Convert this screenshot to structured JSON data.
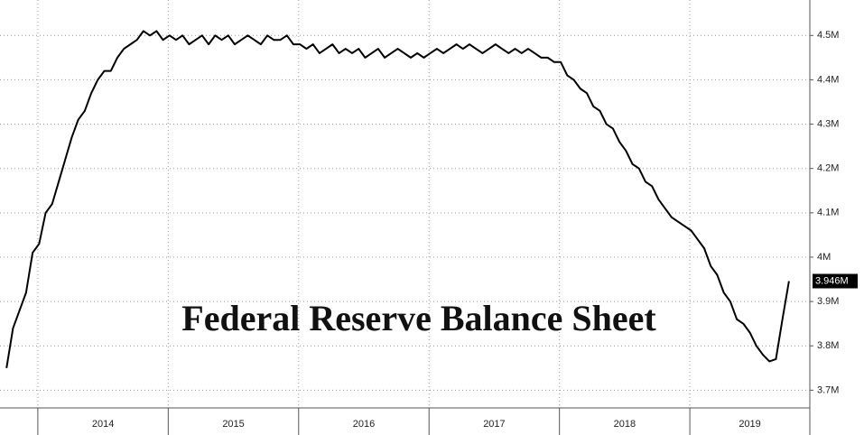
{
  "chart_data": {
    "type": "line",
    "title": "Federal Reserve Balance Sheet",
    "x": [
      2013.76,
      2013.81,
      2013.86,
      2013.91,
      2013.96,
      2014.01,
      2014.06,
      2014.11,
      2014.16,
      2014.21,
      2014.26,
      2014.31,
      2014.36,
      2014.41,
      2014.46,
      2014.51,
      2014.56,
      2014.61,
      2014.66,
      2014.71,
      2014.76,
      2014.81,
      2014.86,
      2014.91,
      2014.96,
      2015.01,
      2015.06,
      2015.11,
      2015.16,
      2015.21,
      2015.26,
      2015.31,
      2015.36,
      2015.41,
      2015.46,
      2015.51,
      2015.56,
      2015.61,
      2015.66,
      2015.71,
      2015.76,
      2015.81,
      2015.86,
      2015.91,
      2015.96,
      2016.01,
      2016.06,
      2016.11,
      2016.16,
      2016.21,
      2016.26,
      2016.31,
      2016.36,
      2016.41,
      2016.46,
      2016.51,
      2016.56,
      2016.61,
      2016.66,
      2016.71,
      2016.76,
      2016.81,
      2016.86,
      2016.91,
      2016.96,
      2017.01,
      2017.06,
      2017.11,
      2017.16,
      2017.21,
      2017.26,
      2017.31,
      2017.36,
      2017.41,
      2017.46,
      2017.51,
      2017.56,
      2017.61,
      2017.66,
      2017.71,
      2017.76,
      2017.81,
      2017.86,
      2017.91,
      2017.96,
      2018.01,
      2018.06,
      2018.11,
      2018.16,
      2018.21,
      2018.26,
      2018.31,
      2018.36,
      2018.41,
      2018.46,
      2018.51,
      2018.56,
      2018.61,
      2018.66,
      2018.71,
      2018.76,
      2018.81,
      2018.86,
      2018.91,
      2018.96,
      2019.01,
      2019.06,
      2019.11,
      2019.16,
      2019.21,
      2019.26,
      2019.31,
      2019.36,
      2019.41,
      2019.46,
      2019.51,
      2019.56,
      2019.61,
      2019.66,
      2019.71,
      2019.76
    ],
    "series": [
      {
        "color": "#000000",
        "values": [
          3.75,
          3.84,
          3.88,
          3.92,
          4.01,
          4.03,
          4.1,
          4.12,
          4.17,
          4.22,
          4.27,
          4.31,
          4.33,
          4.37,
          4.4,
          4.42,
          4.42,
          4.45,
          4.47,
          4.48,
          4.49,
          4.51,
          4.5,
          4.51,
          4.49,
          4.5,
          4.49,
          4.5,
          4.48,
          4.49,
          4.5,
          4.48,
          4.5,
          4.49,
          4.5,
          4.48,
          4.49,
          4.5,
          4.49,
          4.48,
          4.5,
          4.49,
          4.49,
          4.5,
          4.48,
          4.48,
          4.47,
          4.48,
          4.46,
          4.47,
          4.48,
          4.46,
          4.47,
          4.46,
          4.47,
          4.45,
          4.46,
          4.47,
          4.45,
          4.46,
          4.47,
          4.46,
          4.45,
          4.46,
          4.45,
          4.46,
          4.47,
          4.46,
          4.47,
          4.48,
          4.47,
          4.48,
          4.47,
          4.46,
          4.47,
          4.48,
          4.47,
          4.46,
          4.47,
          4.46,
          4.47,
          4.46,
          4.45,
          4.45,
          4.44,
          4.44,
          4.41,
          4.4,
          4.38,
          4.37,
          4.34,
          4.33,
          4.3,
          4.29,
          4.26,
          4.24,
          4.21,
          4.2,
          4.17,
          4.16,
          4.13,
          4.11,
          4.09,
          4.08,
          4.07,
          4.06,
          4.04,
          4.02,
          3.98,
          3.96,
          3.92,
          3.9,
          3.86,
          3.85,
          3.83,
          3.8,
          3.78,
          3.765,
          3.77,
          3.86,
          3.946
        ]
      }
    ],
    "last_value": {
      "value": 3.946,
      "label": "3.946M"
    },
    "xlim": [
      2013.71,
      2019.92
    ],
    "xticks": [
      2014,
      2015,
      2016,
      2017,
      2018,
      2019
    ],
    "ylim": [
      3.66,
      4.58
    ],
    "yticks": [
      {
        "value": 3.7,
        "label": "3.7M"
      },
      {
        "value": 3.8,
        "label": "3.8M"
      },
      {
        "value": 3.9,
        "label": "3.9M"
      },
      {
        "value": 4,
        "label": "4M"
      },
      {
        "value": 4.1,
        "label": "4.1M"
      },
      {
        "value": 4.2,
        "label": "4.2M"
      },
      {
        "value": 4.3,
        "label": "4.3M"
      },
      {
        "value": 4.4,
        "label": "4.4M"
      },
      {
        "value": 4.5,
        "label": "4.5M"
      }
    ],
    "grid": true,
    "y_axis_side": "right"
  }
}
